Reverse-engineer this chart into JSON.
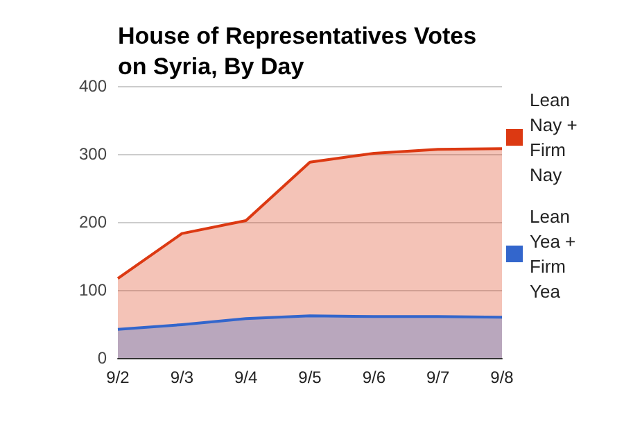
{
  "chart_data": {
    "type": "area",
    "title": "House of Representatives Votes on Syria, By Day",
    "categories": [
      "9/2",
      "9/3",
      "9/4",
      "9/5",
      "9/6",
      "9/7",
      "9/8"
    ],
    "series": [
      {
        "name": "Lean Nay + Firm Nay",
        "color": "#dc3912",
        "values": [
          117,
          183,
          202,
          288,
          301,
          307,
          308
        ]
      },
      {
        "name": "Lean Yea + Firm Yea",
        "color": "#3366cc",
        "values": [
          42,
          49,
          58,
          62,
          61,
          61,
          60
        ]
      }
    ],
    "ylim": [
      0,
      400
    ],
    "yticks": [
      0,
      100,
      200,
      300,
      400
    ],
    "grid": "y",
    "legend": "top right"
  }
}
